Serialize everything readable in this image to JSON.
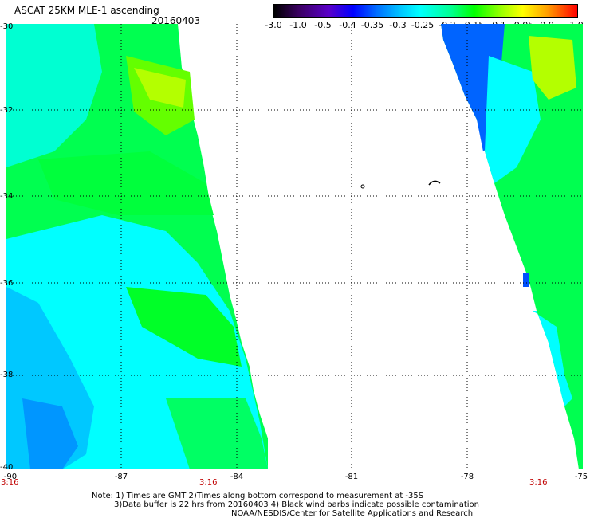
{
  "header": {
    "title": "ASCAT 25KM MLE-1 ascending",
    "date": "20160403"
  },
  "colorbar": {
    "ticks": [
      "-3.0",
      "-1.0",
      "-0.5",
      "-0.4",
      "-0.35",
      "-0.3",
      "-0.25",
      "-0.2",
      "-0.15",
      "-0.1",
      "-0.05",
      "0.0",
      "1.0"
    ]
  },
  "map": {
    "lat_labels": [
      "-30",
      "-32",
      "-34",
      "-36",
      "-38",
      "-40"
    ],
    "lon_labels": [
      "-90",
      "-87",
      "-84",
      "-81",
      "-78",
      "-75"
    ],
    "time_labels": [
      "3:16",
      "3:16",
      "3:16"
    ],
    "swath_colors": {
      "cyan": "#00ffff",
      "green": "#00ff00",
      "light_green": "#78ff00",
      "blue": "#0090ff",
      "teal": "#00ffa0"
    }
  },
  "notes": {
    "line1": "Note: 1) Times are GMT 2)Times along bottom correspond to measurement at -35S",
    "line2": "3)Data buffer is 22 hrs from 20160403 4) Black wind barbs indicate possible contamination",
    "line3": "NOAA/NESDIS/Center for Satellite Applications and Research"
  }
}
